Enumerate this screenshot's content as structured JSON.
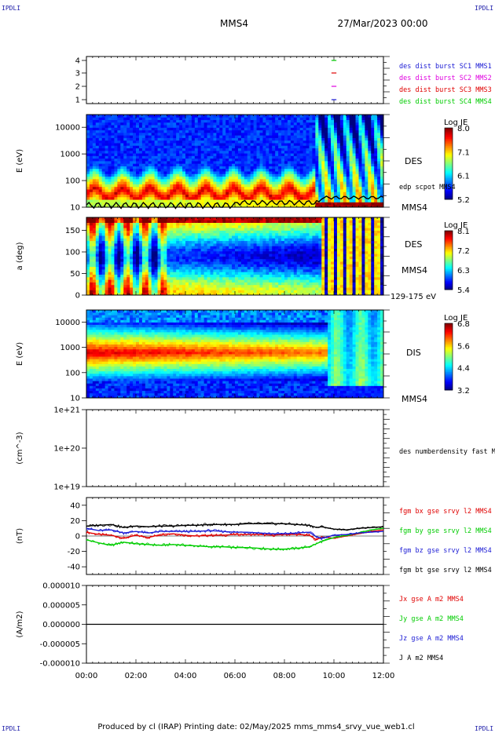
{
  "corner_label": "IPDLI",
  "header": {
    "spacecraft": "MMS4",
    "datetime": "27/Mar/2023 00:00"
  },
  "footer": {
    "text": "Produced by cl (IRAP)   Printing date: 02/May/2025   mms_mms4_srvy_vue_web1.cl"
  },
  "x_axis": {
    "ticks": [
      "00:00",
      "02:00",
      "04:00",
      "06:00",
      "08:00",
      "10:00",
      "12:00"
    ],
    "range_hours": [
      0,
      12
    ]
  },
  "colors": {
    "blue": "#1a1ad4",
    "magenta": "#e000e0",
    "red": "#e00000",
    "green": "#00cc00",
    "black": "#000000"
  },
  "chart_data": [
    {
      "type": "line",
      "panel": "coverage",
      "ylabel": "",
      "y_ticks": [
        "4",
        "3",
        "2",
        "1"
      ],
      "ylim": [
        0.6,
        4.4
      ],
      "legend": [
        {
          "label": "des dist burst SC1 MMS1",
          "color": "#1a1ad4"
        },
        {
          "label": "des dist burst SC2 MMS2",
          "color": "#e000e0"
        },
        {
          "label": "des dist burst SC3 MMS3",
          "color": "#e00000"
        },
        {
          "label": "des dist burst SC4 MMS4",
          "color": "#00cc00"
        }
      ],
      "bursts": [
        {
          "sc": 4,
          "start_h": 9.9,
          "end_h": 10.1
        },
        {
          "sc": 3,
          "start_h": 9.9,
          "end_h": 10.1
        },
        {
          "sc": 2,
          "start_h": 9.9,
          "end_h": 10.1
        },
        {
          "sc": 1,
          "start_h": 9.9,
          "end_h": 10.1
        }
      ]
    },
    {
      "type": "heatmap",
      "panel": "des_energy",
      "ylabel": "E (eV)",
      "yscale": "log",
      "y_ticks": [
        "10000",
        "1000",
        "100",
        "10"
      ],
      "ylim": [
        10,
        30000
      ],
      "colorbar": {
        "title": "Log JE",
        "ticks": [
          "8.0",
          "7.1",
          "6.1",
          "5.2"
        ]
      },
      "labels": [
        "DES",
        "edp scpot MMS4",
        "MMS4"
      ]
    },
    {
      "type": "heatmap",
      "panel": "des_pitch",
      "ylabel": "a (deg)",
      "y_ticks": [
        "150",
        "100",
        "50",
        "0"
      ],
      "ylim": [
        0,
        180
      ],
      "colorbar": {
        "title": "Log JE",
        "ticks": [
          "8.1",
          "7.2",
          "6.3",
          "5.4"
        ]
      },
      "labels": [
        "DES",
        "MMS4",
        "129-175 eV"
      ]
    },
    {
      "type": "heatmap",
      "panel": "dis_energy",
      "ylabel": "E (eV)",
      "yscale": "log",
      "y_ticks": [
        "10000",
        "1000",
        "100",
        "10"
      ],
      "ylim": [
        10,
        30000
      ],
      "colorbar": {
        "title": "Log JE",
        "ticks": [
          "6.8",
          "5.6",
          "4.4",
          "3.2"
        ]
      },
      "labels": [
        "DIS",
        "MMS4"
      ]
    },
    {
      "type": "line",
      "panel": "density",
      "ylabel": "(cm^-3)",
      "yscale": "log",
      "y_ticks": [
        "1e+21",
        "1e+20",
        "1e+19"
      ],
      "ylim": [
        1e+19,
        1e+21
      ],
      "legend": [
        {
          "label": "des numberdensity fast M",
          "color": "#000000"
        }
      ],
      "series": []
    },
    {
      "type": "line",
      "panel": "fgm",
      "ylabel": "(nT)",
      "y_ticks": [
        "40",
        "20",
        "0",
        "-20",
        "-40"
      ],
      "ylim": [
        -50,
        50
      ],
      "legend": [
        {
          "label": "fgm bx gse srvy l2 MMS4",
          "color": "#e00000"
        },
        {
          "label": "fgm by gse srvy l2 MMS4",
          "color": "#00cc00"
        },
        {
          "label": "fgm bz gse srvy l2 MMS4",
          "color": "#1a1ad4"
        },
        {
          "label": "fgm bt gse srvy l2 MMS4",
          "color": "#000000"
        }
      ],
      "x_hours": [
        0,
        0.5,
        1,
        1.5,
        2,
        2.5,
        3,
        3.5,
        4,
        4.5,
        5,
        5.5,
        6,
        6.5,
        7,
        7.5,
        8,
        8.5,
        9,
        9.3,
        9.5,
        10,
        10.5,
        11,
        11.5,
        12
      ],
      "series": [
        {
          "name": "fgm bx gse srvy l2 MMS4",
          "color": "#e00000",
          "values": [
            5,
            2,
            1,
            -3,
            1,
            -2,
            2,
            3,
            1,
            0,
            1,
            1,
            2,
            2,
            2,
            1,
            2,
            2,
            1,
            -5,
            -1,
            -3,
            0,
            3,
            6,
            8
          ]
        },
        {
          "name": "fgm by gse srvy l2 MMS4",
          "color": "#00cc00",
          "values": [
            -5,
            -9,
            -12,
            -8,
            -10,
            -11,
            -12,
            -11,
            -12,
            -13,
            -14,
            -14,
            -15,
            -15,
            -16,
            -17,
            -17,
            -16,
            -14,
            -10,
            -7,
            -2,
            1,
            4,
            8,
            10
          ]
        },
        {
          "name": "fgm bz gse srvy l2 MMS4",
          "color": "#1a1ad4",
          "values": [
            10,
            7,
            8,
            4,
            6,
            4,
            6,
            6,
            6,
            6,
            7,
            6,
            5,
            5,
            4,
            3,
            3,
            4,
            5,
            -1,
            -3,
            1,
            2,
            4,
            5,
            6
          ]
        },
        {
          "name": "fgm bt gse srvy l2 MMS4",
          "color": "#000000",
          "values": [
            13,
            14,
            15,
            11,
            13,
            12,
            13,
            13,
            14,
            14,
            15,
            15,
            15,
            16,
            16,
            16,
            16,
            15,
            14,
            11,
            12,
            9,
            8,
            10,
            11,
            12
          ]
        }
      ]
    },
    {
      "type": "line",
      "panel": "current",
      "ylabel": "(A/m2)",
      "y_ticks": [
        "0.000010",
        "0.000005",
        "0.000000",
        "-0.000005",
        "-0.000010"
      ],
      "ylim": [
        -1e-05,
        1e-05
      ],
      "legend": [
        {
          "label": "Jx gse A m2 MMS4",
          "color": "#e00000"
        },
        {
          "label": "Jy gse A m2 MMS4",
          "color": "#00cc00"
        },
        {
          "label": "Jz gse A m2 MMS4",
          "color": "#1a1ad4"
        },
        {
          "label": "J A m2 MMS4",
          "color": "#000000"
        }
      ],
      "x_hours": [
        0,
        12
      ],
      "series": [
        {
          "name": "J A m2 MMS4",
          "color": "#000000",
          "values": [
            0,
            0
          ]
        }
      ]
    }
  ]
}
